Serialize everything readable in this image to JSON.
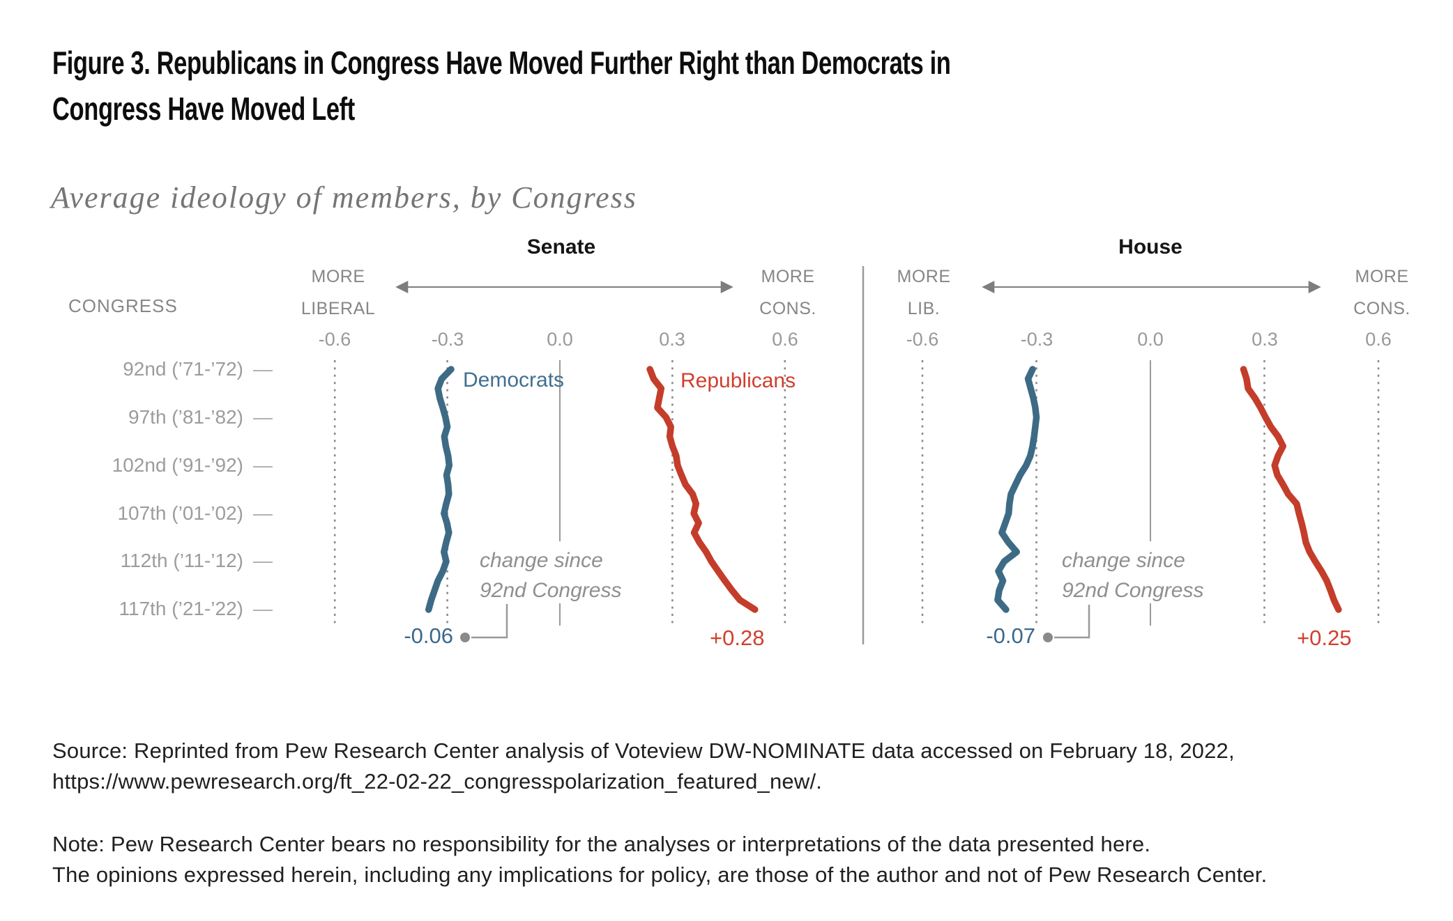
{
  "figure": {
    "title_line1": "Figure 3. Republicans in Congress Have Moved Further Right than Democrats in",
    "title_line2": "Congress Have Moved Left",
    "subtitle": "Average ideology of members, by Congress"
  },
  "axis": {
    "congress_header": "CONGRESS",
    "row_labels": [
      "92nd (’71-’72)",
      "97th (’81-’82)",
      "102nd (’91-’92)",
      "107th (’01-’02)",
      "112th (’11-’12)",
      "117th (’21-’22)"
    ],
    "row_tick": "—",
    "tick_labels": [
      "-0.6",
      "-0.3",
      "0.0",
      "0.3",
      "0.6"
    ]
  },
  "panels": [
    {
      "title": "Senate",
      "left_label_line1": "MORE",
      "left_label_line2": "LIBERAL",
      "right_label_line1": "MORE",
      "right_label_line2": "CONS.",
      "democrats_label": "Democrats",
      "republicans_label": "Republicans",
      "change_note_line1": "change since",
      "change_note_line2": "92nd Congress",
      "dem_change": "-0.06",
      "rep_change": "+0.28"
    },
    {
      "title": "House",
      "left_label_line1": "MORE",
      "left_label_line2": "LIB.",
      "right_label_line1": "MORE",
      "right_label_line2": "CONS.",
      "change_note_line1": "change since",
      "change_note_line2": "92nd Congress",
      "dem_change": "-0.07",
      "rep_change": "+0.25"
    }
  ],
  "footer": {
    "source_line1": "Source: Reprinted from Pew Research Center analysis of Voteview DW-NOMINATE data accessed on February 18, 2022,",
    "source_line2": "https://www.pewresearch.org/ft_22-02-22_congresspolarization_featured_new/.",
    "note_line1": "Note: Pew Research Center bears no responsibility for the analyses or interpretations of the data presented here.",
    "note_line2": "The opinions expressed herein, including any implications for policy, are those of the author and not of Pew Research Center."
  },
  "colors": {
    "democrat_blue": "#3d6b85",
    "republican_red": "#c43d2a",
    "label_gray": "#86868a",
    "tick_gray": "#999999",
    "annotation_gray": "#8f8f8f"
  },
  "chart_data": {
    "type": "line",
    "title": "Average ideology of members, by Congress",
    "orientation": "vertical-time-axis",
    "value_ticks": [
      -0.6,
      -0.3,
      0,
      0.3,
      0.6
    ],
    "value_tick_labels": [
      "-0.6",
      "-0.3",
      "0.0",
      "0.3",
      "0.6"
    ],
    "xlim": [
      -0.6,
      0.6
    ],
    "congresses": [
      92,
      93,
      94,
      95,
      96,
      97,
      98,
      99,
      100,
      101,
      102,
      103,
      104,
      105,
      106,
      107,
      108,
      109,
      110,
      111,
      112,
      113,
      114,
      115,
      116,
      117
    ],
    "labeled_congresses": [
      "92nd (’71-’72)",
      "97th (’81-’82)",
      "102nd (’91-’92)",
      "107th (’01-’02)",
      "112th (’11-’12)",
      "117th (’21-’22)"
    ],
    "panels": [
      {
        "name": "Senate",
        "series": [
          {
            "name": "Democrats",
            "color": "#3d6b85",
            "change_since_92nd": "-0.06",
            "values": [
              -0.29,
              -0.315,
              -0.325,
              -0.32,
              -0.312,
              -0.305,
              -0.3,
              -0.308,
              -0.304,
              -0.298,
              -0.295,
              -0.302,
              -0.298,
              -0.296,
              -0.303,
              -0.309,
              -0.301,
              -0.296,
              -0.303,
              -0.309,
              -0.303,
              -0.312,
              -0.325,
              -0.334,
              -0.343,
              -0.35
            ]
          },
          {
            "name": "Republicans",
            "color": "#c43d2a",
            "change_since_92nd": "+0.28",
            "values": [
              0.24,
              0.25,
              0.27,
              0.265,
              0.26,
              0.283,
              0.296,
              0.293,
              0.3,
              0.31,
              0.314,
              0.324,
              0.335,
              0.354,
              0.363,
              0.357,
              0.37,
              0.358,
              0.372,
              0.39,
              0.404,
              0.422,
              0.44,
              0.459,
              0.48,
              0.52
            ]
          }
        ]
      },
      {
        "name": "House",
        "series": [
          {
            "name": "Democrats",
            "color": "#3d6b85",
            "change_since_92nd": "-0.07",
            "values": [
              -0.31,
              -0.322,
              -0.315,
              -0.308,
              -0.303,
              -0.3,
              -0.303,
              -0.306,
              -0.31,
              -0.316,
              -0.327,
              -0.343,
              -0.355,
              -0.367,
              -0.371,
              -0.373,
              -0.382,
              -0.391,
              -0.374,
              -0.352,
              -0.385,
              -0.4,
              -0.388,
              -0.398,
              -0.402,
              -0.38
            ]
          },
          {
            "name": "Republicans",
            "color": "#c43d2a",
            "change_since_92nd": "+0.25",
            "values": [
              0.245,
              0.253,
              0.257,
              0.275,
              0.29,
              0.303,
              0.317,
              0.336,
              0.349,
              0.336,
              0.327,
              0.334,
              0.349,
              0.363,
              0.385,
              0.391,
              0.398,
              0.404,
              0.409,
              0.419,
              0.434,
              0.45,
              0.464,
              0.474,
              0.483,
              0.495
            ]
          }
        ]
      }
    ]
  }
}
